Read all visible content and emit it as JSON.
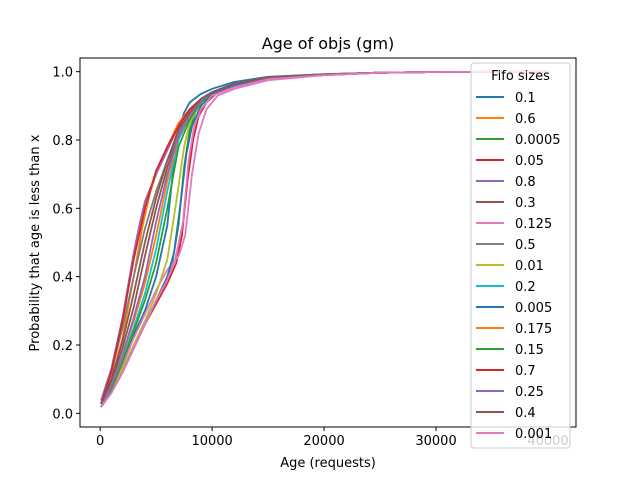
{
  "chart_data": {
    "type": "line",
    "title": "Age of objs (gm)",
    "xlabel": "Age (requests)",
    "ylabel": "Probability that age is less than x",
    "xlim": [
      -1800,
      42500
    ],
    "ylim": [
      -0.04,
      1.04
    ],
    "xticks": [
      0,
      10000,
      20000,
      30000,
      40000
    ],
    "xtick_labels": [
      "0",
      "10000",
      "20000",
      "30000",
      "40000"
    ],
    "yticks": [
      0.0,
      0.2,
      0.4,
      0.6,
      0.8,
      1.0
    ],
    "ytick_labels": [
      "0.0",
      "0.2",
      "0.4",
      "0.6",
      "0.8",
      "1.0"
    ],
    "grid": false,
    "legend": {
      "title": "Fifo sizes",
      "placement": "upper right"
    },
    "series": [
      {
        "name": "0.1",
        "color": "#1f77b4",
        "x": [
          100,
          1000,
          2000,
          3000,
          4000,
          5000,
          6000,
          6800,
          7500,
          8000,
          9000,
          10000,
          12000,
          15000,
          20000,
          25000,
          30000,
          40000
        ],
        "y": [
          0.02,
          0.07,
          0.15,
          0.23,
          0.3,
          0.4,
          0.55,
          0.8,
          0.88,
          0.91,
          0.935,
          0.95,
          0.97,
          0.985,
          0.993,
          0.997,
          0.999,
          1.0
        ]
      },
      {
        "name": "0.6",
        "color": "#ff7f0e",
        "x": [
          100,
          1000,
          2000,
          3000,
          3800,
          4500,
          5000,
          6000,
          7000,
          8000,
          9000,
          10000,
          12000,
          15000,
          20000,
          25000,
          30000,
          40000
        ],
        "y": [
          0.03,
          0.1,
          0.22,
          0.4,
          0.55,
          0.65,
          0.7,
          0.78,
          0.85,
          0.89,
          0.92,
          0.94,
          0.965,
          0.983,
          0.992,
          0.997,
          0.999,
          1.0
        ]
      },
      {
        "name": "0.0005",
        "color": "#2ca02c",
        "x": [
          100,
          1000,
          2000,
          3000,
          4000,
          5000,
          6000,
          6500,
          7000,
          7500,
          8000,
          8500,
          9000,
          10000,
          12000,
          15000,
          20000,
          25000,
          30000,
          40000
        ],
        "y": [
          0.02,
          0.06,
          0.12,
          0.19,
          0.26,
          0.33,
          0.4,
          0.45,
          0.55,
          0.72,
          0.83,
          0.88,
          0.91,
          0.94,
          0.965,
          0.982,
          0.992,
          0.997,
          0.999,
          1.0
        ]
      },
      {
        "name": "0.05",
        "color": "#d62728",
        "x": [
          100,
          1000,
          2000,
          3000,
          4000,
          5000,
          6000,
          6800,
          7300,
          7800,
          8300,
          8800,
          9500,
          10500,
          12000,
          15000,
          20000,
          25000,
          30000,
          40000
        ],
        "y": [
          0.02,
          0.06,
          0.12,
          0.19,
          0.26,
          0.32,
          0.38,
          0.44,
          0.52,
          0.68,
          0.8,
          0.87,
          0.91,
          0.94,
          0.96,
          0.98,
          0.99,
          0.997,
          0.999,
          1.0
        ]
      },
      {
        "name": "0.8",
        "color": "#9467bd",
        "x": [
          100,
          1000,
          2000,
          3000,
          3500,
          4000,
          5000,
          6000,
          7000,
          8000,
          9000,
          10000,
          12000,
          15000,
          20000,
          25000,
          30000,
          40000
        ],
        "y": [
          0.04,
          0.13,
          0.28,
          0.47,
          0.55,
          0.62,
          0.7,
          0.77,
          0.84,
          0.89,
          0.92,
          0.94,
          0.965,
          0.983,
          0.992,
          0.997,
          0.999,
          1.0
        ]
      },
      {
        "name": "0.3",
        "color": "#8c564b",
        "x": [
          100,
          1000,
          2000,
          3000,
          4000,
          5000,
          6000,
          7000,
          8000,
          9000,
          10000,
          12000,
          15000,
          20000,
          25000,
          30000,
          40000
        ],
        "y": [
          0.03,
          0.09,
          0.19,
          0.31,
          0.46,
          0.6,
          0.72,
          0.82,
          0.88,
          0.92,
          0.94,
          0.965,
          0.983,
          0.992,
          0.997,
          0.999,
          1.0
        ]
      },
      {
        "name": "0.125",
        "color": "#e377c2",
        "x": [
          100,
          1000,
          2000,
          3000,
          4000,
          5000,
          6000,
          7000,
          7600,
          8200,
          8800,
          9500,
          10500,
          12000,
          15000,
          20000,
          25000,
          30000,
          40000
        ],
        "y": [
          0.02,
          0.07,
          0.14,
          0.22,
          0.29,
          0.36,
          0.42,
          0.46,
          0.52,
          0.7,
          0.82,
          0.89,
          0.93,
          0.95,
          0.975,
          0.99,
          0.997,
          0.999,
          1.0
        ]
      },
      {
        "name": "0.5",
        "color": "#7f7f7f",
        "x": [
          100,
          1000,
          2000,
          3000,
          4000,
          5000,
          6000,
          7000,
          8000,
          9000,
          10000,
          12000,
          15000,
          20000,
          25000,
          30000,
          40000
        ],
        "y": [
          0.03,
          0.12,
          0.25,
          0.4,
          0.54,
          0.65,
          0.74,
          0.82,
          0.88,
          0.92,
          0.94,
          0.965,
          0.983,
          0.992,
          0.997,
          0.999,
          1.0
        ]
      },
      {
        "name": "0.01",
        "color": "#bcbd22",
        "x": [
          100,
          1000,
          2000,
          3000,
          4000,
          5000,
          6000,
          6800,
          7500,
          8000,
          9000,
          10000,
          12000,
          15000,
          20000,
          25000,
          30000,
          40000
        ],
        "y": [
          0.02,
          0.06,
          0.13,
          0.2,
          0.27,
          0.35,
          0.45,
          0.62,
          0.78,
          0.85,
          0.91,
          0.94,
          0.965,
          0.982,
          0.992,
          0.997,
          0.999,
          1.0
        ]
      },
      {
        "name": "0.2",
        "color": "#17becf",
        "x": [
          100,
          1000,
          2000,
          3000,
          4000,
          5000,
          6000,
          7000,
          8000,
          9000,
          10000,
          12000,
          15000,
          20000,
          25000,
          30000,
          40000
        ],
        "y": [
          0.02,
          0.08,
          0.16,
          0.25,
          0.35,
          0.48,
          0.65,
          0.8,
          0.87,
          0.91,
          0.94,
          0.965,
          0.983,
          0.992,
          0.997,
          0.999,
          1.0
        ]
      },
      {
        "name": "0.005",
        "color": "#1f77b4",
        "x": [
          100,
          1000,
          2000,
          3000,
          4000,
          5000,
          6000,
          6600,
          7200,
          7700,
          8200,
          9000,
          10000,
          12000,
          15000,
          20000,
          25000,
          30000,
          40000
        ],
        "y": [
          0.02,
          0.06,
          0.12,
          0.19,
          0.26,
          0.33,
          0.4,
          0.47,
          0.62,
          0.76,
          0.84,
          0.9,
          0.935,
          0.96,
          0.98,
          0.99,
          0.997,
          0.999,
          1.0
        ]
      },
      {
        "name": "0.175",
        "color": "#ff7f0e",
        "x": [
          100,
          1000,
          2000,
          3000,
          4000,
          5000,
          6000,
          7000,
          8000,
          9000,
          10000,
          12000,
          15000,
          20000,
          25000,
          30000,
          40000
        ],
        "y": [
          0.02,
          0.08,
          0.17,
          0.27,
          0.38,
          0.52,
          0.68,
          0.81,
          0.87,
          0.915,
          0.94,
          0.965,
          0.983,
          0.992,
          0.997,
          0.999,
          1.0
        ]
      },
      {
        "name": "0.15",
        "color": "#2ca02c",
        "x": [
          100,
          1000,
          2000,
          3000,
          4000,
          5000,
          6000,
          7000,
          8000,
          9000,
          10000,
          12000,
          15000,
          20000,
          25000,
          30000,
          40000
        ],
        "y": [
          0.02,
          0.07,
          0.15,
          0.24,
          0.33,
          0.44,
          0.6,
          0.78,
          0.86,
          0.91,
          0.94,
          0.965,
          0.983,
          0.992,
          0.997,
          0.999,
          1.0
        ]
      },
      {
        "name": "0.7",
        "color": "#d62728",
        "x": [
          100,
          1000,
          2000,
          3000,
          4000,
          5000,
          6000,
          7000,
          8000,
          9000,
          10000,
          12000,
          15000,
          20000,
          25000,
          30000,
          40000
        ],
        "y": [
          0.03,
          0.12,
          0.27,
          0.45,
          0.6,
          0.71,
          0.78,
          0.84,
          0.89,
          0.92,
          0.94,
          0.965,
          0.983,
          0.992,
          0.997,
          0.999,
          1.0
        ]
      },
      {
        "name": "0.25",
        "color": "#9467bd",
        "x": [
          100,
          1000,
          2000,
          3000,
          4000,
          5000,
          6000,
          7000,
          8000,
          9000,
          10000,
          12000,
          15000,
          20000,
          25000,
          30000,
          40000
        ],
        "y": [
          0.02,
          0.08,
          0.17,
          0.28,
          0.4,
          0.56,
          0.7,
          0.81,
          0.87,
          0.915,
          0.94,
          0.965,
          0.983,
          0.992,
          0.997,
          0.999,
          1.0
        ]
      },
      {
        "name": "0.4",
        "color": "#8c564b",
        "x": [
          100,
          1000,
          2000,
          3000,
          4000,
          5000,
          6000,
          7000,
          8000,
          9000,
          10000,
          12000,
          15000,
          20000,
          25000,
          30000,
          40000
        ],
        "y": [
          0.03,
          0.1,
          0.21,
          0.35,
          0.5,
          0.63,
          0.74,
          0.83,
          0.88,
          0.92,
          0.94,
          0.965,
          0.983,
          0.992,
          0.997,
          0.999,
          1.0
        ]
      },
      {
        "name": "0.001",
        "color": "#e377c2",
        "x": [
          100,
          1000,
          2000,
          3000,
          4000,
          5000,
          6000,
          6700,
          7400,
          7900,
          8400,
          9000,
          10000,
          12000,
          15000,
          20000,
          25000,
          30000,
          40000
        ],
        "y": [
          0.02,
          0.06,
          0.12,
          0.19,
          0.26,
          0.33,
          0.39,
          0.45,
          0.56,
          0.74,
          0.84,
          0.89,
          0.93,
          0.955,
          0.978,
          0.99,
          0.997,
          0.999,
          1.0
        ]
      }
    ]
  }
}
